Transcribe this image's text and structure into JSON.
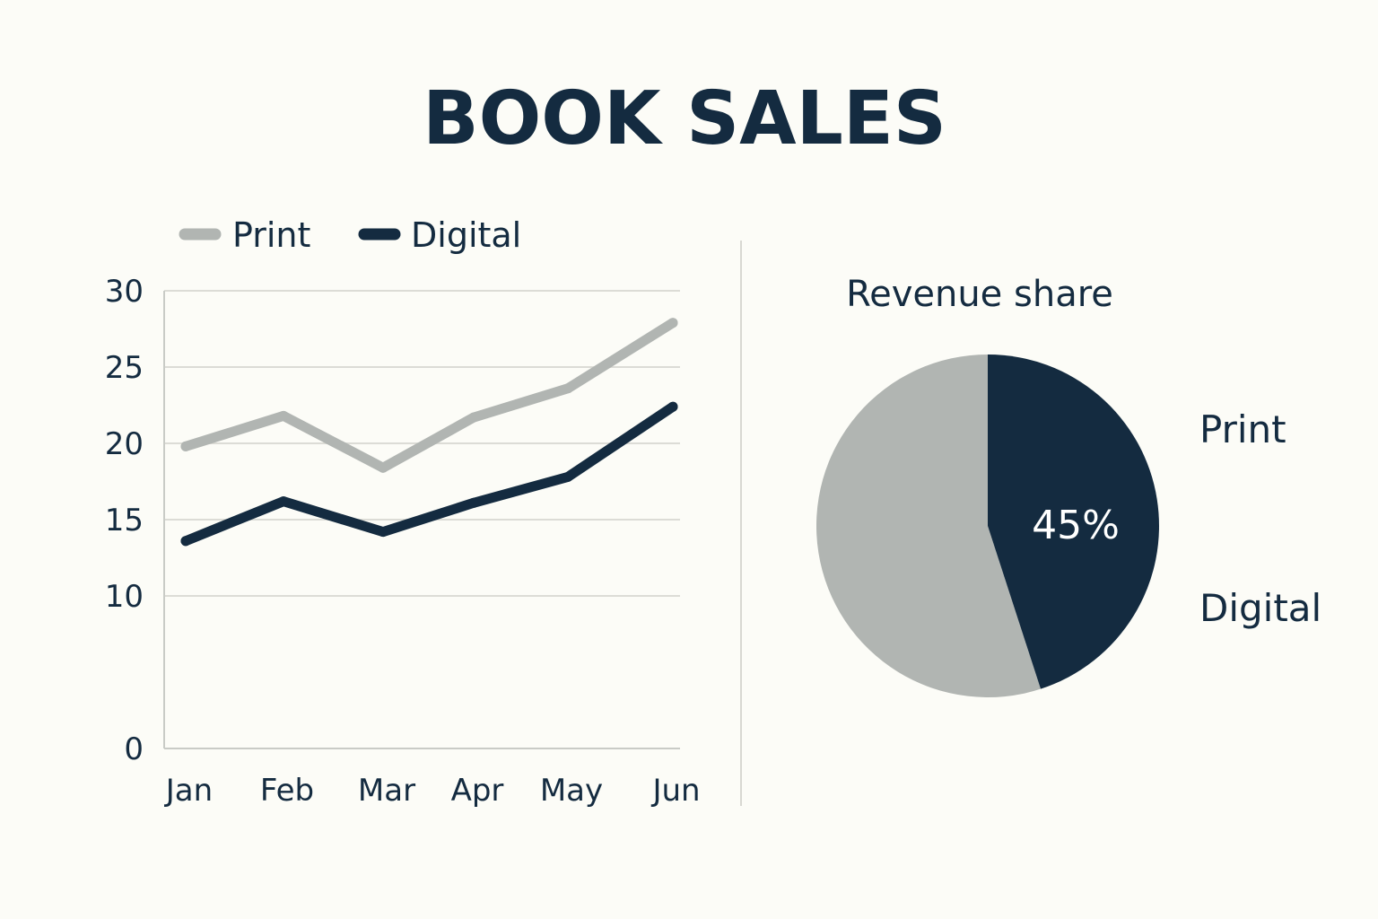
{
  "title": "BOOK SALES",
  "colors": {
    "print": "#b1b5b2",
    "digital": "#142b40",
    "grid": "#dcdcd6",
    "axis": "#c9cbc6",
    "text": "#142b40"
  },
  "chart_data": [
    {
      "type": "line",
      "categories": [
        "Jan",
        "Feb",
        "Mar",
        "Apr",
        "May",
        "Jun"
      ],
      "series": [
        {
          "name": "Print",
          "values": [
            19.8,
            21.8,
            18.4,
            21.7,
            23.6,
            27.9
          ]
        },
        {
          "name": "Digital",
          "values": [
            13.6,
            16.2,
            14.2,
            16.1,
            17.8,
            22.4
          ]
        }
      ],
      "yticks": [
        0,
        10,
        15,
        20,
        25,
        30
      ],
      "ylim": [
        0,
        30
      ],
      "legend": "top-left",
      "grid": true
    },
    {
      "type": "pie",
      "title": "Revenue share",
      "slices": [
        {
          "name": "Print",
          "value": 55
        },
        {
          "name": "Digital",
          "value": 45
        }
      ],
      "data_label": "45%"
    }
  ]
}
